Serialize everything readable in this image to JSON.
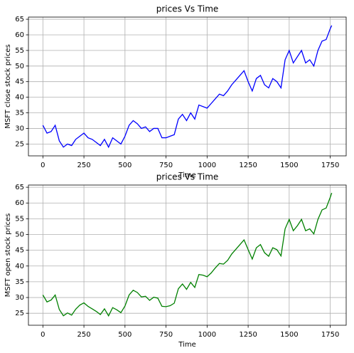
{
  "chart_data": [
    {
      "type": "line",
      "title": "prices Vs Time",
      "xlabel": "Time",
      "ylabel": "MSFT close stock prices",
      "x": [
        0,
        25,
        50,
        75,
        100,
        125,
        150,
        175,
        200,
        225,
        250,
        275,
        300,
        325,
        350,
        375,
        400,
        425,
        450,
        475,
        500,
        525,
        550,
        575,
        600,
        625,
        650,
        675,
        700,
        725,
        750,
        775,
        800,
        825,
        850,
        875,
        900,
        925,
        950,
        975,
        1000,
        1025,
        1050,
        1075,
        1100,
        1125,
        1150,
        1175,
        1200,
        1225,
        1250,
        1275,
        1300,
        1325,
        1350,
        1375,
        1400,
        1425,
        1450,
        1475,
        1500,
        1525,
        1550,
        1575,
        1600,
        1625,
        1650,
        1675,
        1700,
        1725,
        1750,
        1759
      ],
      "series": [
        {
          "name": "close",
          "color": "#0000ff",
          "values": [
            31,
            28.5,
            29,
            31,
            26,
            24,
            25,
            24.5,
            26.5,
            27.5,
            28.5,
            27,
            26.5,
            25.5,
            24.5,
            26.5,
            24,
            27,
            26,
            25,
            27.5,
            31,
            32.5,
            31.5,
            30,
            30.5,
            29,
            30,
            30,
            27,
            27,
            27.5,
            28,
            33,
            34.5,
            32.5,
            35,
            33,
            37.5,
            37,
            36.5,
            38,
            39.5,
            41,
            40.5,
            42,
            44,
            45.5,
            47,
            48.5,
            45,
            42,
            46,
            47,
            44,
            43,
            46,
            45,
            43,
            52,
            55,
            51,
            53,
            55,
            51,
            52,
            50,
            55,
            58,
            58.5,
            62,
            63
          ]
        }
      ],
      "xlim": [
        -88,
        1847
      ],
      "ylim": [
        21.2,
        65.7
      ],
      "xticks": [
        0,
        250,
        500,
        750,
        1000,
        1250,
        1500,
        1750
      ],
      "yticks": [
        25,
        30,
        35,
        40,
        45,
        50,
        55,
        60,
        65
      ],
      "grid": true
    },
    {
      "type": "line",
      "title": "prices Vs Time",
      "xlabel": "Time",
      "ylabel": "MSFT open stock prices",
      "x": [
        0,
        25,
        50,
        75,
        100,
        125,
        150,
        175,
        200,
        225,
        250,
        275,
        300,
        325,
        350,
        375,
        400,
        425,
        450,
        475,
        500,
        525,
        550,
        575,
        600,
        625,
        650,
        675,
        700,
        725,
        750,
        775,
        800,
        825,
        850,
        875,
        900,
        925,
        950,
        975,
        1000,
        1025,
        1050,
        1075,
        1100,
        1125,
        1150,
        1175,
        1200,
        1225,
        1250,
        1275,
        1300,
        1325,
        1350,
        1375,
        1400,
        1425,
        1450,
        1475,
        1500,
        1525,
        1550,
        1575,
        1600,
        1625,
        1650,
        1675,
        1700,
        1725,
        1750,
        1759
      ],
      "series": [
        {
          "name": "open",
          "color": "#008000",
          "values": [
            30.8,
            28.6,
            29.2,
            30.8,
            26.2,
            24.2,
            25.1,
            24.4,
            26.3,
            27.6,
            28.3,
            27.2,
            26.4,
            25.6,
            24.6,
            26.4,
            24.2,
            26.8,
            26.1,
            25.2,
            27.3,
            30.8,
            32.3,
            31.6,
            30.2,
            30.4,
            29.1,
            30.1,
            29.8,
            27.2,
            27.1,
            27.4,
            28.2,
            32.8,
            34.3,
            32.6,
            34.8,
            33.2,
            37.3,
            37.1,
            36.6,
            37.8,
            39.4,
            40.8,
            40.6,
            41.8,
            43.8,
            45.3,
            46.8,
            48.3,
            45.2,
            42.2,
            45.8,
            46.8,
            44.2,
            43.1,
            45.8,
            45.2,
            43.2,
            51.8,
            54.8,
            51.2,
            52.8,
            54.8,
            51.2,
            51.8,
            50.2,
            54.8,
            57.8,
            58.4,
            61.8,
            63.2
          ]
        }
      ],
      "xlim": [
        -88,
        1847
      ],
      "ylim": [
        21.2,
        65.7
      ],
      "xticks": [
        0,
        250,
        500,
        750,
        1000,
        1250,
        1500,
        1750
      ],
      "yticks": [
        25,
        30,
        35,
        40,
        45,
        50,
        55,
        60,
        65
      ],
      "grid": true
    }
  ]
}
